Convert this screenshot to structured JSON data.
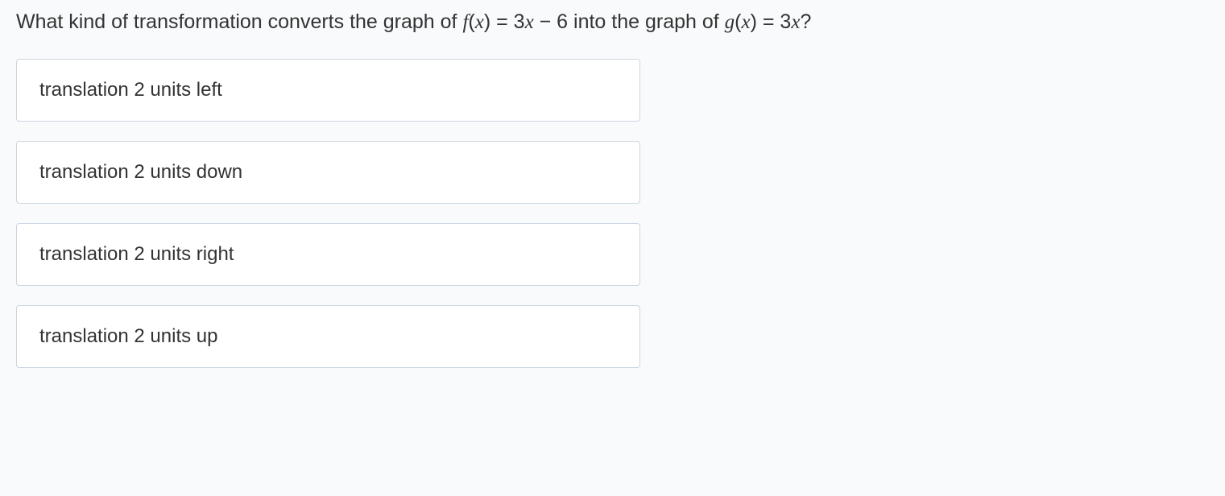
{
  "question": {
    "prefix": "What kind of transformation converts the graph of ",
    "fn1_name": "f",
    "fn1_open": "(",
    "fn1_var": "x",
    "fn1_close": ") = 3",
    "fn1_var2": "x",
    "fn1_tail": " − 6 into the graph of ",
    "fn2_name": "g",
    "fn2_open": "(",
    "fn2_var": "x",
    "fn2_close": ") = 3",
    "fn2_var2": "x",
    "fn2_tail": "?"
  },
  "options": [
    {
      "label": "translation 2 units left"
    },
    {
      "label": "translation 2 units down"
    },
    {
      "label": "translation 2 units right"
    },
    {
      "label": "translation 2 units up"
    }
  ],
  "styles": {
    "background_color": "#f9fafb",
    "option_border_color": "#cbd5e0",
    "text_color": "#333333",
    "option_bg": "#ffffff",
    "question_fontsize": 25,
    "option_fontsize": 24
  }
}
